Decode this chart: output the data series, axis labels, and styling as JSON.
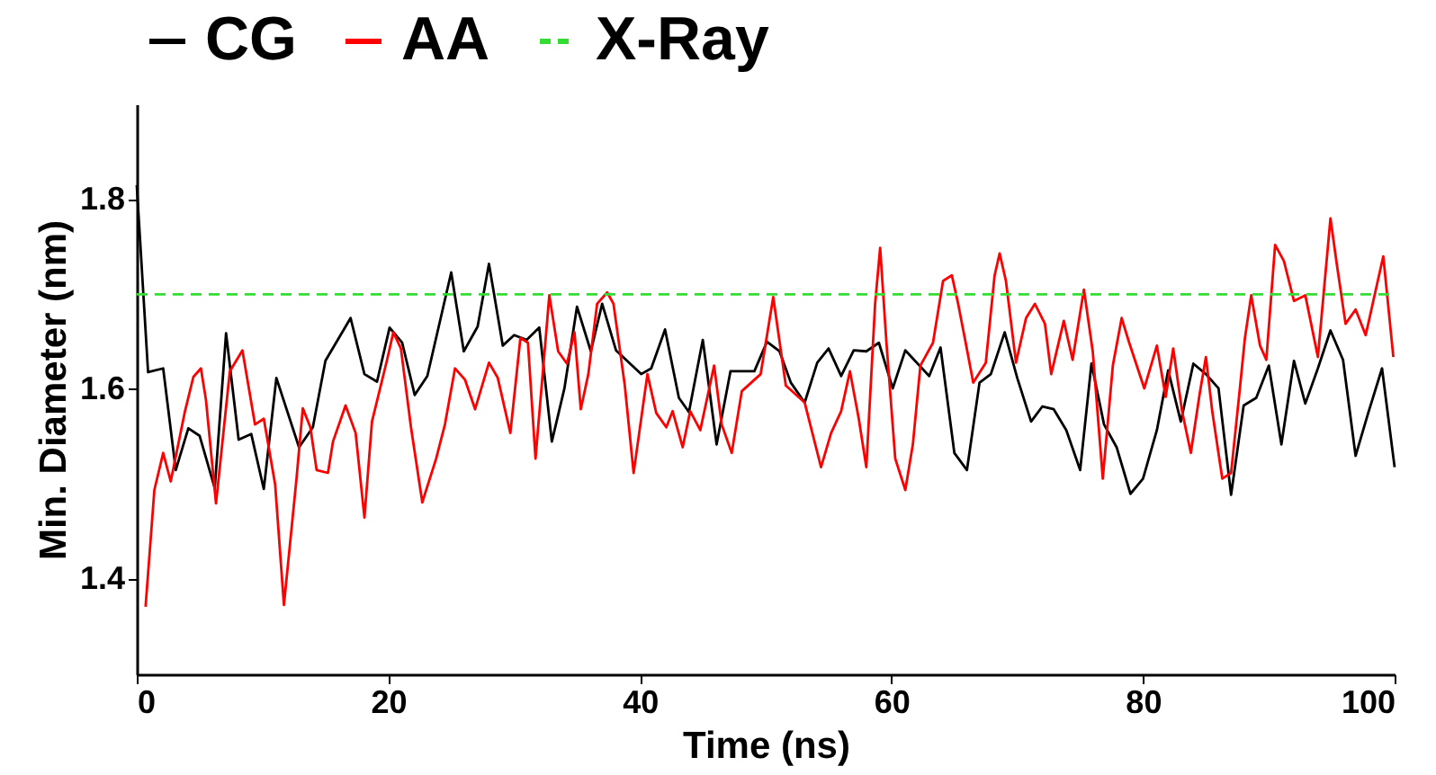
{
  "chart_data": {
    "type": "line",
    "xlabel": "Time (ns)",
    "ylabel": "Min. Diameter (nm)",
    "xlim": [
      0,
      100
    ],
    "ylim": [
      1.3,
      1.9
    ],
    "xticks": [
      0,
      20,
      40,
      60,
      80,
      100
    ],
    "yticks": [
      1.4,
      1.6,
      1.8
    ],
    "grid": false,
    "legend": "top",
    "line_style": "solid",
    "series": [
      {
        "name": "CG",
        "color": "#000000",
        "x": [
          0,
          0.9,
          2.1,
          3.1,
          4.1,
          5.0,
          6.2,
          7.1,
          8.1,
          9.1,
          10.1,
          11.1,
          12.9,
          14.0,
          15.0,
          17.0,
          18.1,
          19.1,
          20.1,
          21.1,
          22.1,
          23.1,
          25.0,
          26.0,
          27.1,
          28.0,
          29.1,
          30.0,
          31.0,
          32.0,
          33.0,
          34.0,
          35.0,
          36.1,
          37.0,
          38.1,
          40.1,
          40.9,
          42.0,
          43.1,
          43.9,
          45.0,
          46.1,
          47.2,
          49.1,
          50.1,
          51.1,
          52.0,
          53.1,
          54.1,
          55.0,
          56.0,
          57.0,
          58.0,
          59.0,
          60.1,
          61.1,
          63.0,
          63.9,
          65.0,
          66.0,
          67.0,
          67.9,
          69.0,
          70.0,
          71.1,
          72.0,
          72.9,
          73.9,
          75.0,
          75.9,
          76.9,
          77.9,
          79.0,
          80.0,
          81.1,
          82.0,
          83.0,
          84.0,
          85.0,
          86.0,
          87.0,
          88.0,
          89.0,
          90.0,
          91.0,
          92.0,
          92.9,
          93.9,
          94.9,
          95.9,
          96.9,
          97.9,
          99.0,
          100.0
        ],
        "values": [
          1.815,
          1.618,
          1.622,
          1.515,
          1.559,
          1.551,
          1.496,
          1.659,
          1.547,
          1.553,
          1.495,
          1.612,
          1.539,
          1.56,
          1.63,
          1.675,
          1.616,
          1.608,
          1.665,
          1.649,
          1.594,
          1.614,
          1.723,
          1.64,
          1.666,
          1.732,
          1.646,
          1.657,
          1.652,
          1.665,
          1.545,
          1.601,
          1.687,
          1.64,
          1.69,
          1.641,
          1.616,
          1.622,
          1.663,
          1.591,
          1.576,
          1.652,
          1.542,
          1.619,
          1.619,
          1.65,
          1.64,
          1.607,
          1.586,
          1.628,
          1.643,
          1.614,
          1.641,
          1.64,
          1.649,
          1.601,
          1.641,
          1.614,
          1.644,
          1.533,
          1.515,
          1.607,
          1.616,
          1.66,
          1.612,
          1.566,
          1.582,
          1.579,
          1.557,
          1.515,
          1.627,
          1.563,
          1.539,
          1.49,
          1.506,
          1.557,
          1.62,
          1.566,
          1.627,
          1.616,
          1.601,
          1.489,
          1.583,
          1.591,
          1.625,
          1.542,
          1.63,
          1.585,
          1.622,
          1.662,
          1.631,
          1.53,
          1.575,
          1.622,
          1.518
        ]
      },
      {
        "name": "AA",
        "color": "#ff0000",
        "x": [
          0.7,
          1.4,
          2.1,
          2.7,
          3.8,
          4.5,
          5.1,
          5.5,
          6.3,
          7.4,
          8.4,
          9.4,
          10.1,
          11.0,
          11.7,
          12.7,
          13.2,
          13.8,
          14.3,
          15.2,
          15.6,
          16.6,
          17.4,
          18.1,
          18.7,
          19.9,
          20.4,
          21.0,
          21.8,
          22.7,
          23.8,
          24.5,
          25.3,
          26.1,
          26.9,
          28.0,
          28.7,
          29.7,
          30.5,
          31.1,
          31.7,
          32.8,
          33.5,
          34.2,
          34.8,
          35.3,
          35.9,
          36.6,
          37.4,
          37.9,
          38.8,
          39.5,
          40.6,
          41.3,
          42.1,
          42.6,
          43.4,
          44.0,
          44.8,
          45.9,
          46.5,
          47.3,
          48.1,
          49.6,
          50.6,
          51.6,
          53.1,
          54.4,
          55.2,
          56.0,
          56.7,
          57.4,
          58.0,
          58.7,
          59.1,
          59.6,
          60.3,
          61.1,
          61.7,
          62.3,
          63.3,
          64.1,
          64.8,
          65.3,
          65.9,
          66.5,
          67.5,
          68.2,
          68.6,
          69.1,
          69.9,
          70.7,
          71.4,
          72.2,
          72.7,
          73.7,
          74.4,
          75.3,
          76.0,
          76.8,
          77.6,
          78.3,
          78.9,
          80.1,
          81.1,
          81.8,
          82.4,
          83.1,
          83.8,
          84.5,
          85.0,
          85.5,
          86.3,
          87.0,
          87.7,
          88.1,
          88.6,
          89.3,
          89.8,
          90.5,
          91.2,
          92.0,
          92.9,
          93.9,
          94.9,
          95.4,
          96.1,
          96.9,
          97.7,
          99.1,
          99.9
        ],
        "values": [
          1.371,
          1.494,
          1.533,
          1.503,
          1.575,
          1.613,
          1.622,
          1.589,
          1.48,
          1.619,
          1.641,
          1.563,
          1.569,
          1.5,
          1.373,
          1.506,
          1.58,
          1.56,
          1.515,
          1.512,
          1.545,
          1.583,
          1.554,
          1.465,
          1.566,
          1.631,
          1.66,
          1.643,
          1.56,
          1.481,
          1.527,
          1.563,
          1.622,
          1.61,
          1.579,
          1.628,
          1.612,
          1.554,
          1.654,
          1.649,
          1.527,
          1.699,
          1.64,
          1.627,
          1.66,
          1.579,
          1.616,
          1.69,
          1.702,
          1.69,
          1.604,
          1.512,
          1.616,
          1.575,
          1.56,
          1.577,
          1.539,
          1.577,
          1.557,
          1.625,
          1.563,
          1.533,
          1.598,
          1.616,
          1.697,
          1.604,
          1.586,
          1.518,
          1.554,
          1.577,
          1.619,
          1.569,
          1.518,
          1.69,
          1.749,
          1.649,
          1.527,
          1.494,
          1.542,
          1.625,
          1.649,
          1.714,
          1.72,
          1.69,
          1.649,
          1.607,
          1.628,
          1.72,
          1.743,
          1.714,
          1.628,
          1.675,
          1.69,
          1.669,
          1.616,
          1.672,
          1.631,
          1.705,
          1.64,
          1.506,
          1.625,
          1.675,
          1.649,
          1.601,
          1.646,
          1.592,
          1.643,
          1.577,
          1.533,
          1.595,
          1.634,
          1.577,
          1.506,
          1.512,
          1.601,
          1.654,
          1.699,
          1.646,
          1.631,
          1.752,
          1.735,
          1.693,
          1.699,
          1.634,
          1.78,
          1.732,
          1.669,
          1.684,
          1.657,
          1.74,
          1.634
        ]
      },
      {
        "name": "X-Ray",
        "color": "#33dd33",
        "type": "line",
        "line_style": "dashed",
        "x": [
          0,
          100
        ],
        "values": [
          1.7,
          1.7
        ]
      }
    ]
  }
}
